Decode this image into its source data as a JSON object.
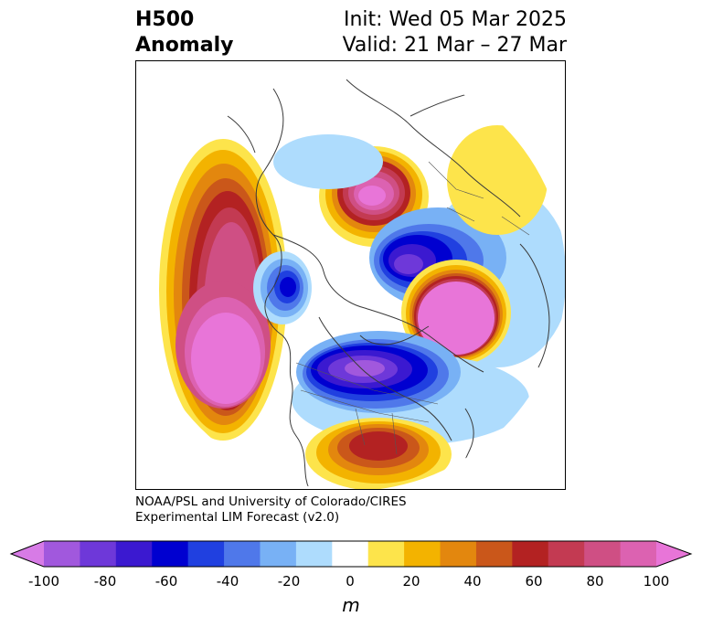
{
  "title": {
    "left_line1": "H500",
    "left_line2": "Anomaly",
    "right_line1": "Init: Wed 05 Mar 2025",
    "right_line2": "Valid: 21 Mar – 27 Mar"
  },
  "credit": {
    "line1": "NOAA/PSL and University of Colorado/CIRES",
    "line2": "Experimental LIM Forecast (v2.0)"
  },
  "colorbar": {
    "unit": "m",
    "ticks": [
      "-100",
      "-80",
      "-60",
      "-40",
      "-20",
      "0",
      "20",
      "40",
      "60",
      "80",
      "100"
    ],
    "colors": [
      "#d77be6",
      "#a158dd",
      "#6e38d9",
      "#3b19d0",
      "#0000d0",
      "#2040e0",
      "#4f78ea",
      "#78b1f5",
      "#aedcfd",
      "#ffffff",
      "#fde44b",
      "#f3b300",
      "#e3870e",
      "#ca571a",
      "#b32222",
      "#c33a52",
      "#cf4f84",
      "#dc62b1",
      "#e875d8"
    ]
  },
  "map": {
    "projection": "north polar stereographic",
    "anomalies": [
      {
        "region": "North Pacific",
        "sign": "positive"
      },
      {
        "region": "Gulf of Alaska",
        "sign": "negative"
      },
      {
        "region": "East Siberia",
        "sign": "positive"
      },
      {
        "region": "Arctic / Kara Sea",
        "sign": "negative"
      },
      {
        "region": "Scandinavia / Northern Europe",
        "sign": "positive"
      },
      {
        "region": "Canada / Greenland",
        "sign": "negative"
      },
      {
        "region": "Southeastern US",
        "sign": "positive"
      }
    ]
  }
}
